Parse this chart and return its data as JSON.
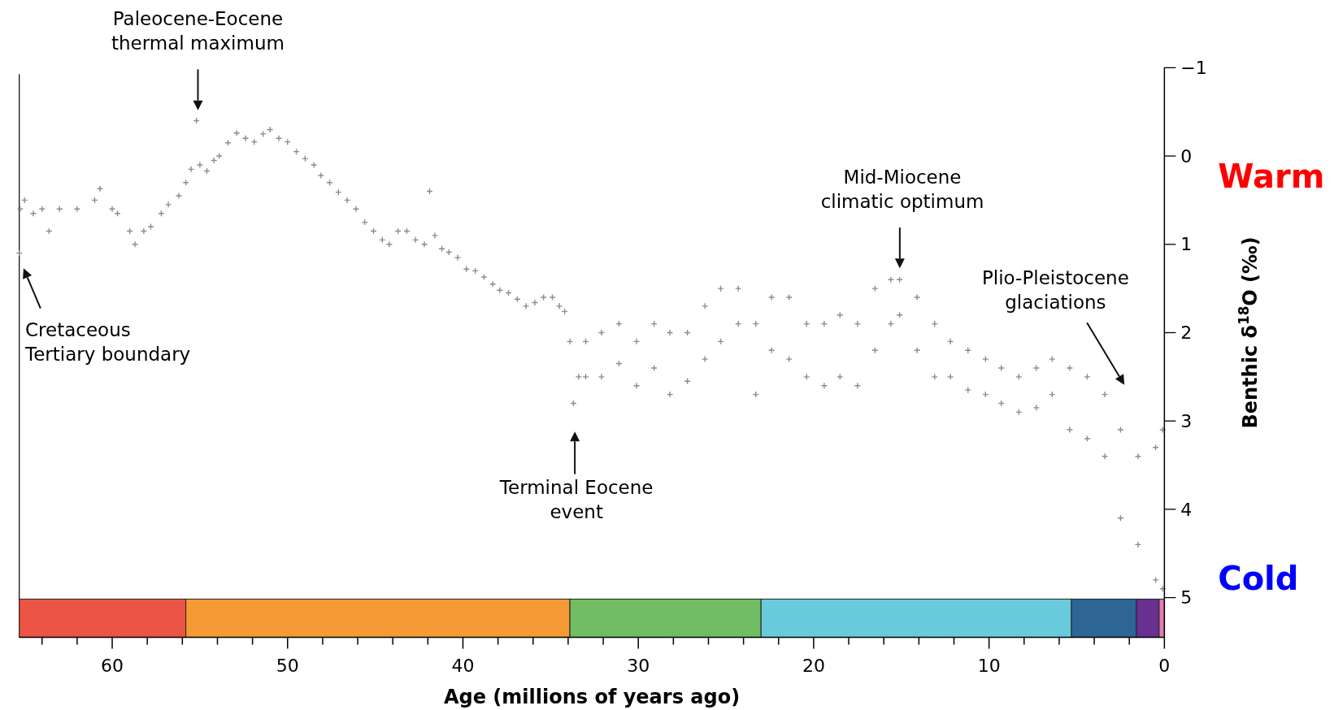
{
  "chart_data": {
    "type": "scatter",
    "xlabel": "Age (millions of years ago)",
    "ylabel": "Benthic δ$^{18}$O (‰)",
    "xlim": [
      65.3,
      0
    ],
    "ylim": [
      5.45,
      -1
    ],
    "xticks": [
      {
        "value": 64,
        "label": null
      },
      {
        "value": 62,
        "label": null
      },
      60,
      {
        "value": 58,
        "label": null
      },
      {
        "value": 56,
        "label": null
      },
      {
        "value": 54,
        "label": null
      },
      {
        "value": 52,
        "label": null
      },
      50,
      {
        "value": 48,
        "label": null
      },
      {
        "value": 46,
        "label": null
      },
      {
        "value": 44,
        "label": null
      },
      {
        "value": 42,
        "label": null
      },
      40,
      {
        "value": 38,
        "label": null
      },
      {
        "value": 36,
        "label": null
      },
      {
        "value": 34,
        "label": null
      },
      {
        "value": 32,
        "label": null
      },
      30,
      {
        "value": 28,
        "label": null
      },
      {
        "value": 26,
        "label": null
      },
      {
        "value": 24,
        "label": null
      },
      {
        "value": 22,
        "label": null
      },
      20,
      {
        "value": 18,
        "label": null
      },
      {
        "value": 16,
        "label": null
      },
      {
        "value": 14,
        "label": null
      },
      {
        "value": 12,
        "label": null
      },
      10,
      {
        "value": 8,
        "label": null
      },
      {
        "value": 6,
        "label": null
      },
      {
        "value": 4,
        "label": null
      },
      {
        "value": 2,
        "label": null
      },
      0
    ],
    "yticks": [
      {
        "value": -1,
        "label": "−1"
      },
      0,
      1,
      2,
      3,
      4,
      5
    ],
    "marker": "cross",
    "grid": false,
    "series": [
      {
        "color": "#8c8c8c",
        "x": [
          65.25,
          65.3,
          65.0,
          64.5,
          64.0,
          63.6,
          63.0,
          62.0,
          61.0,
          60.7,
          60.0,
          59.7,
          59.0,
          58.7,
          58.2,
          57.8,
          57.2,
          56.8,
          56.2,
          55.8,
          55.5,
          55.2,
          55.0,
          54.6,
          54.2,
          53.9,
          53.4,
          52.9,
          52.4,
          51.9,
          51.4,
          51.0,
          50.5,
          50.0,
          49.5,
          49.0,
          48.5,
          48.1,
          47.6,
          47.1,
          46.6,
          46.1,
          45.6,
          45.1,
          44.6,
          44.2,
          43.7,
          43.2,
          42.7,
          42.2,
          41.9,
          41.6,
          41.2,
          40.8,
          40.3,
          39.8,
          39.3,
          38.8,
          38.3,
          37.9,
          37.4,
          36.9,
          36.4,
          35.9,
          35.4,
          34.9,
          34.5,
          34.2,
          33.9,
          33.7,
          33.4,
          33.0,
          33.0,
          32.1,
          32.1,
          31.1,
          31.1,
          30.1,
          30.1,
          29.1,
          29.1,
          28.2,
          28.2,
          27.2,
          27.2,
          26.2,
          26.2,
          25.3,
          25.3,
          24.3,
          24.3,
          23.3,
          23.3,
          22.4,
          22.4,
          21.4,
          21.4,
          20.4,
          20.4,
          19.4,
          19.4,
          18.5,
          18.5,
          17.5,
          17.5,
          16.5,
          16.5,
          15.6,
          15.6,
          15.1,
          15.1,
          14.1,
          14.1,
          13.1,
          13.1,
          12.2,
          12.2,
          11.2,
          11.2,
          10.2,
          10.2,
          9.3,
          9.3,
          8.3,
          8.3,
          7.3,
          7.3,
          6.4,
          6.4,
          5.4,
          5.4,
          4.4,
          4.4,
          3.4,
          3.4,
          2.5,
          2.5,
          1.5,
          1.5,
          0.5,
          0.5,
          0.1,
          0.1
        ],
        "values": [
          0.6,
          1.1,
          0.5,
          0.65,
          0.6,
          0.85,
          0.6,
          0.6,
          0.5,
          0.37,
          0.6,
          0.65,
          0.85,
          1.0,
          0.85,
          0.8,
          0.65,
          0.55,
          0.45,
          0.3,
          0.15,
          -0.4,
          0.1,
          0.17,
          0.05,
          0,
          -0.15,
          -0.26,
          -0.2,
          -0.16,
          -0.25,
          -0.3,
          -0.2,
          -0.16,
          -0.05,
          0.03,
          0.1,
          0.22,
          0.3,
          0.41,
          0.5,
          0.6,
          0.75,
          0.85,
          0.95,
          1.0,
          0.85,
          0.85,
          0.95,
          1.0,
          0.4,
          0.9,
          1.05,
          1.09,
          1.15,
          1.28,
          1.3,
          1.37,
          1.45,
          1.52,
          1.55,
          1.62,
          1.7,
          1.66,
          1.6,
          1.6,
          1.7,
          1.76,
          2.1,
          2.8,
          2.5,
          2.1,
          2.5,
          2.0,
          2.5,
          1.9,
          2.35,
          2.1,
          2.6,
          1.9,
          2.4,
          2.0,
          2.7,
          2.0,
          2.55,
          1.7,
          2.3,
          1.5,
          2.1,
          1.5,
          1.9,
          1.9,
          2.7,
          1.6,
          2.2,
          1.6,
          2.3,
          1.9,
          2.5,
          1.9,
          2.6,
          1.8,
          2.5,
          1.9,
          2.6,
          1.5,
          2.2,
          1.4,
          1.9,
          1.4,
          1.8,
          1.6,
          2.2,
          1.9,
          2.5,
          2.1,
          2.5,
          2.2,
          2.65,
          2.3,
          2.7,
          2.4,
          2.8,
          2.5,
          2.9,
          2.4,
          2.85,
          2.3,
          2.7,
          2.4,
          3.1,
          2.5,
          3.2,
          2.7,
          3.4,
          3.1,
          4.1,
          3.4,
          4.4,
          3.3,
          4.8,
          3.1,
          4.9
        ]
      }
    ],
    "annotations": [
      "Paleocene-Eocene\nthermal maximum",
      "Cretaceous\nTertiary boundary",
      "Terminal Eocene\nevent",
      "Mid-Miocene\nclimatic optimum",
      "Plio-Pleistocene\nglaciations",
      "Warm",
      "Cold"
    ]
  }
}
